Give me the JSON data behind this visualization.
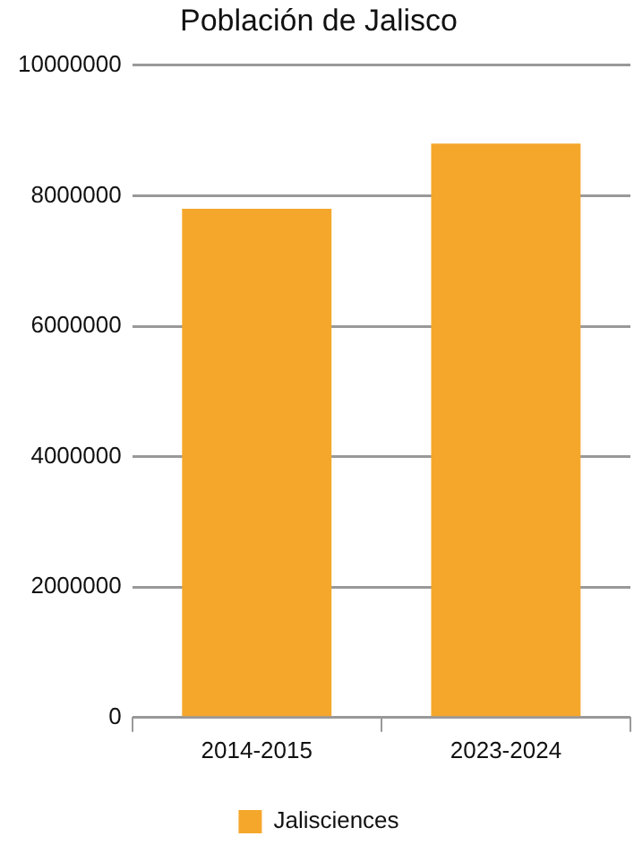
{
  "chart_data": {
    "type": "bar",
    "title": "Población de Jalisco",
    "categories": [
      "2014-2015",
      "2023-2024"
    ],
    "series": [
      {
        "name": "Jalisciences",
        "color": "#f5a72c",
        "values": [
          7800000,
          8800000
        ]
      }
    ],
    "ylim": [
      0,
      10000000
    ],
    "yticks": [
      0,
      2000000,
      4000000,
      6000000,
      8000000,
      10000000
    ],
    "grid": "y",
    "legend": "bottom"
  }
}
